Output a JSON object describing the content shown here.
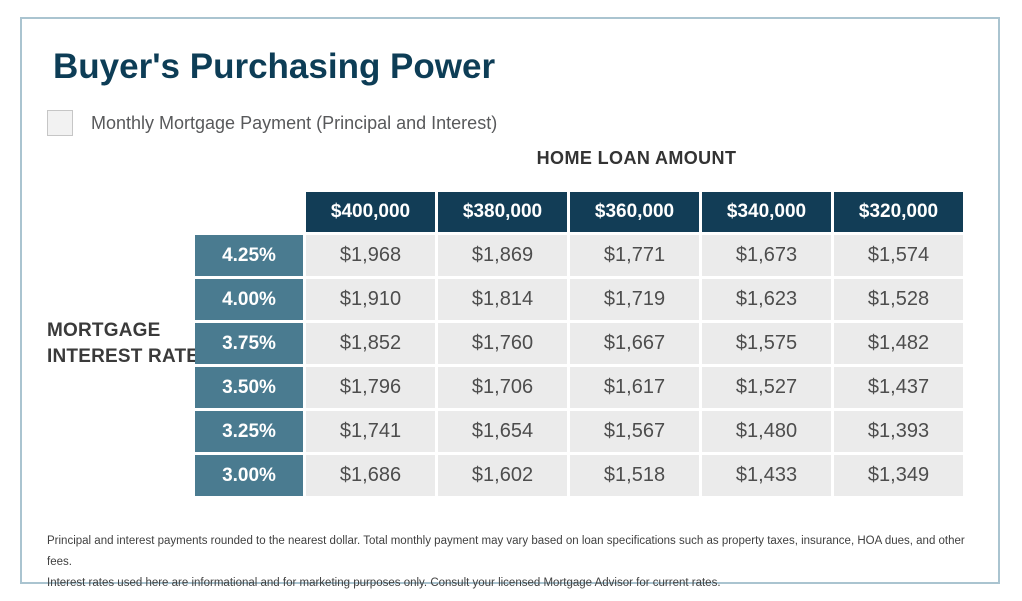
{
  "title": "Buyer's Purchasing Power",
  "legend": {
    "label": "Monthly Mortgage Payment (Principal and Interest)",
    "swatch_color": "#f2f2f2"
  },
  "table": {
    "column_group_label": "HOME LOAN AMOUNT",
    "row_group_label": "MORTGAGE INTEREST RATE"
  },
  "chart_data": {
    "type": "table",
    "title": "Buyer's Purchasing Power",
    "column_axis_label": "HOME LOAN AMOUNT",
    "row_axis_label": "MORTGAGE INTEREST RATE",
    "value_label": "Monthly Mortgage Payment (Principal and Interest)",
    "columns": [
      "$400,000",
      "$380,000",
      "$360,000",
      "$340,000",
      "$320,000"
    ],
    "rows": [
      "4.25%",
      "4.00%",
      "3.75%",
      "3.50%",
      "3.25%",
      "3.00%"
    ],
    "values": [
      [
        "$1,968",
        "$1,869",
        "$1,771",
        "$1,673",
        "$1,574"
      ],
      [
        "$1,910",
        "$1,814",
        "$1,719",
        "$1,623",
        "$1,528"
      ],
      [
        "$1,852",
        "$1,760",
        "$1,667",
        "$1,575",
        "$1,482"
      ],
      [
        "$1,796",
        "$1,706",
        "$1,617",
        "$1,527",
        "$1,437"
      ],
      [
        "$1,741",
        "$1,654",
        "$1,567",
        "$1,480",
        "$1,393"
      ],
      [
        "$1,686",
        "$1,602",
        "$1,518",
        "$1,433",
        "$1,349"
      ]
    ]
  },
  "footnote": {
    "line1": "Principal and interest payments rounded to the nearest dollar. Total monthly payment may vary based on loan specifications such as property taxes, insurance, HOA dues, and other fees.",
    "line2": "Interest rates used here are informational and for marketing purposes only. Consult your licensed Mortgage Advisor for current rates."
  },
  "colors": {
    "title": "#0d3d56",
    "header_bg": "#123d56",
    "rate_bg": "#4a7b90",
    "cell_bg": "#ebebeb",
    "panel_border": "#aac4d0"
  }
}
